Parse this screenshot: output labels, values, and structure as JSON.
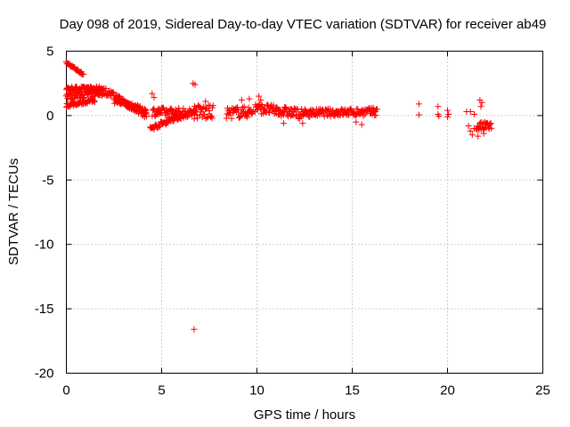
{
  "chart_data": {
    "type": "scatter",
    "title": "Day 098 of 2019, Sidereal Day-to-day VTEC variation (SDTVAR) for receiver ab49",
    "xlabel": "GPS time / hours",
    "ylabel": "SDTVAR / TECUs",
    "xlim": [
      0,
      25
    ],
    "ylim": [
      -20,
      5
    ],
    "xticks": [
      0,
      5,
      10,
      15,
      20,
      25
    ],
    "yticks": [
      5,
      0,
      -5,
      -10,
      -15,
      -20
    ],
    "grid": true,
    "marker": "plus",
    "color": "#ff0000",
    "segments": [
      {
        "x0": 0.0,
        "x1": 0.9,
        "y0": 4.1,
        "y1": 3.2,
        "jitter": 0.1
      },
      {
        "x0": 0.0,
        "x1": 1.9,
        "y0": 2.1,
        "y1": 2.1,
        "jitter": 0.15
      },
      {
        "x0": 0.0,
        "x1": 1.9,
        "y0": 1.5,
        "y1": 1.8,
        "jitter": 0.3
      },
      {
        "x0": 0.0,
        "x1": 1.5,
        "y0": 0.8,
        "y1": 1.2,
        "jitter": 0.15
      },
      {
        "x0": 1.9,
        "x1": 4.2,
        "y0": 2.0,
        "y1": 0.1,
        "jitter": 0.3
      },
      {
        "x0": 2.5,
        "x1": 4.2,
        "y0": 1.2,
        "y1": 0.3,
        "jitter": 0.25
      },
      {
        "x0": 4.5,
        "x1": 6.8,
        "y0": 0.3,
        "y1": 0.2,
        "jitter": 0.35
      },
      {
        "x0": 4.4,
        "x1": 5.4,
        "y0": -1.0,
        "y1": -0.4,
        "jitter": 0.2
      },
      {
        "x0": 5.4,
        "x1": 6.2,
        "y0": -0.3,
        "y1": 0.0,
        "jitter": 0.2
      },
      {
        "x0": 6.7,
        "x1": 7.7,
        "y0": 0.3,
        "y1": 0.2,
        "jitter": 0.6
      },
      {
        "x0": 8.4,
        "x1": 9.8,
        "y0": 0.2,
        "y1": 0.3,
        "jitter": 0.45
      },
      {
        "x0": 9.9,
        "x1": 12.5,
        "y0": 0.6,
        "y1": 0.1,
        "jitter": 0.4
      },
      {
        "x0": 12.5,
        "x1": 16.3,
        "y0": 0.2,
        "y1": 0.3,
        "jitter": 0.3
      },
      {
        "x0": 21.5,
        "x1": 22.3,
        "y0": -0.9,
        "y1": -0.8,
        "jitter": 0.35
      }
    ],
    "points": [
      {
        "x": 4.5,
        "y": 1.7
      },
      {
        "x": 4.6,
        "y": 1.4
      },
      {
        "x": 6.65,
        "y": 2.5
      },
      {
        "x": 6.75,
        "y": 2.4
      },
      {
        "x": 6.7,
        "y": -16.6
      },
      {
        "x": 7.3,
        "y": 1.1
      },
      {
        "x": 9.2,
        "y": 1.2
      },
      {
        "x": 9.6,
        "y": 1.3
      },
      {
        "x": 10.1,
        "y": 1.5
      },
      {
        "x": 10.2,
        "y": 1.2
      },
      {
        "x": 11.4,
        "y": -0.6
      },
      {
        "x": 12.4,
        "y": -0.6
      },
      {
        "x": 15.2,
        "y": -0.5
      },
      {
        "x": 15.5,
        "y": -0.7
      },
      {
        "x": 16.1,
        "y": 0.6
      },
      {
        "x": 18.5,
        "y": 0.9
      },
      {
        "x": 18.5,
        "y": 0.05
      },
      {
        "x": 19.5,
        "y": 0.7
      },
      {
        "x": 19.5,
        "y": 0.1
      },
      {
        "x": 19.55,
        "y": -0.05
      },
      {
        "x": 20.0,
        "y": 0.4
      },
      {
        "x": 20.05,
        "y": 0.1
      },
      {
        "x": 20.0,
        "y": -0.1
      },
      {
        "x": 21.0,
        "y": 0.3
      },
      {
        "x": 21.2,
        "y": 0.3
      },
      {
        "x": 21.4,
        "y": 0.1
      },
      {
        "x": 21.1,
        "y": -0.8
      },
      {
        "x": 21.2,
        "y": -1.2
      },
      {
        "x": 21.3,
        "y": -1.5
      },
      {
        "x": 21.4,
        "y": -1.0
      },
      {
        "x": 21.7,
        "y": 1.2
      },
      {
        "x": 21.8,
        "y": 1.0
      },
      {
        "x": 21.75,
        "y": 0.7
      },
      {
        "x": 21.6,
        "y": -1.6
      },
      {
        "x": 21.9,
        "y": -1.4
      }
    ]
  }
}
